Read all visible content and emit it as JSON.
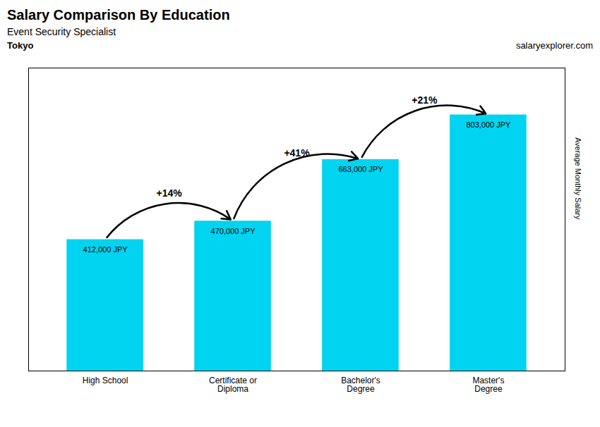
{
  "chart_data": {
    "type": "bar",
    "title": "Salary Comparison By Education",
    "subtitle": "Event Security Specialist",
    "categories": [
      "High School",
      "Certificate or\nDiploma",
      "Bachelor's\nDegree",
      "Master's\nDegree"
    ],
    "values": [
      412000,
      470000,
      663000,
      803000
    ],
    "value_labels": [
      "412,000 JPY",
      "470,000 JPY",
      "663,000 JPY",
      "803,000 JPY"
    ],
    "data_labels": true,
    "color": "#00d4f0",
    "ylim": [
      0,
      950000
    ],
    "ylabel": "Average Monthly Salary",
    "tick_labels": "x",
    "grid": false,
    "annotations": [
      {
        "text": "Tokyo"
      },
      {
        "text": "salaryexplorer.com"
      },
      {
        "text": "+14%",
        "from": "High School",
        "to": "Certificate or\nDiploma"
      },
      {
        "text": "+41%",
        "from": "Certificate or\nDiploma",
        "to": "Bachelor's\nDegree"
      },
      {
        "text": "+21%",
        "from": "Bachelor's\nDegree",
        "to": "Master's\nDegree"
      }
    ]
  }
}
